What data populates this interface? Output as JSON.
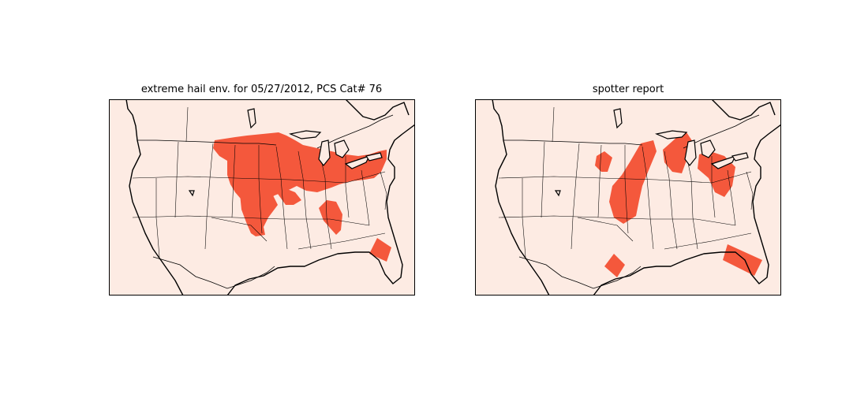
{
  "panels": [
    {
      "id": "left",
      "title": "extreme hail env. for 05/27/2012, PCS Cat# 76",
      "regions": [
        {
          "name": "north-central-plains-to-great-lakes-region"
        },
        {
          "name": "south-plains-tail-region"
        },
        {
          "name": "ohio-valley-region"
        },
        {
          "name": "tennessee-valley-region"
        },
        {
          "name": "florida-region"
        }
      ]
    },
    {
      "id": "right",
      "title": "spotter report",
      "regions": [
        {
          "name": "northern-plains-small-region"
        },
        {
          "name": "central-plains-band-region"
        },
        {
          "name": "michigan-region"
        },
        {
          "name": "upper-ohio-region"
        },
        {
          "name": "texas-region"
        },
        {
          "name": "florida-region"
        }
      ]
    }
  ],
  "colors": {
    "land": "#fdebe3",
    "hail_region": "#f4583c",
    "boundary": "#000000"
  }
}
